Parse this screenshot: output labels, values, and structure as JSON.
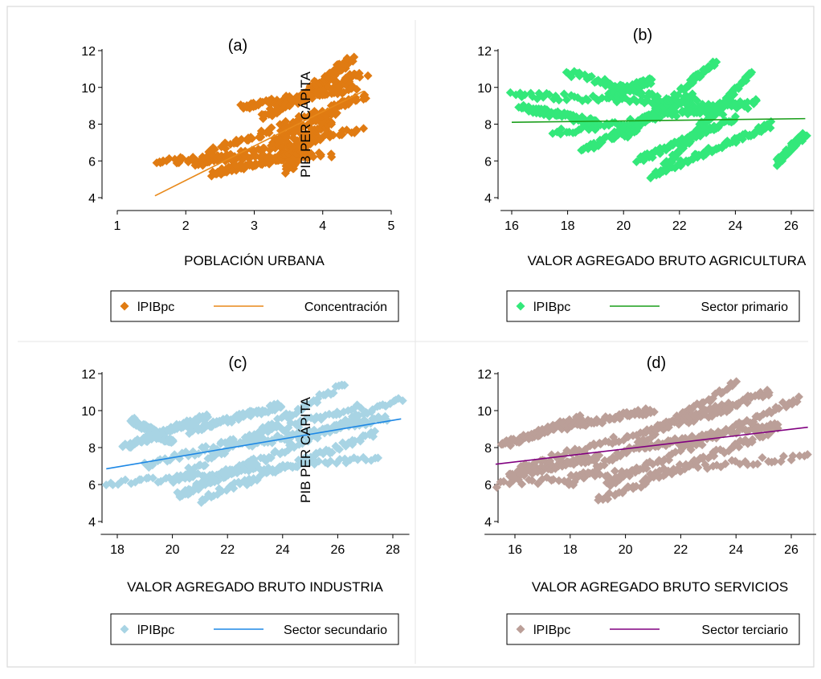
{
  "figure": {
    "frame_color": "#d9d9d9",
    "panel_border_color": "#e6e6e6"
  },
  "chart_data": [
    {
      "id": "a",
      "type": "scatter",
      "title": "(a)",
      "xlabel": "POBLACIÓN URBANA",
      "ylabel": "PIB PER CÁPITA",
      "xlim": [
        1,
        5
      ],
      "ylim": [
        4,
        12
      ],
      "xticks": [
        "1",
        "2",
        "3",
        "4",
        "5"
      ],
      "yticks": [
        "4",
        "6",
        "8",
        "10",
        "12"
      ],
      "grid": false,
      "legend_position": "bottom",
      "series": [
        {
          "name": "lPIBpc",
          "kind": "scatter",
          "marker": "diamond",
          "color": "#e07b12",
          "clusters": [
            {
              "from": [
                1.55,
                6.0
              ],
              "to": [
                4.1,
                6.3
              ]
            },
            {
              "from": [
                2.1,
                5.8
              ],
              "to": [
                4.55,
                7.8
              ]
            },
            {
              "from": [
                2.3,
                6.4
              ],
              "to": [
                4.4,
                9.2
              ]
            },
            {
              "from": [
                2.8,
                8.9
              ],
              "to": [
                4.5,
                10.0
              ]
            },
            {
              "from": [
                3.1,
                8.4
              ],
              "to": [
                4.6,
                10.8
              ]
            },
            {
              "from": [
                3.8,
                9.8
              ],
              "to": [
                4.4,
                11.5
              ]
            },
            {
              "from": [
                2.4,
                5.3
              ],
              "to": [
                3.6,
                6.4
              ]
            },
            {
              "from": [
                3.4,
                6.2
              ],
              "to": [
                4.1,
                8.2
              ]
            },
            {
              "from": [
                3.3,
                7.0
              ],
              "to": [
                4.6,
                9.6
              ]
            },
            {
              "from": [
                3.5,
                5.5
              ],
              "to": [
                3.8,
                7.2
              ]
            }
          ]
        },
        {
          "name": "Concentración",
          "kind": "line",
          "color": "#e8891a",
          "x": [
            1.55,
            4.6
          ],
          "y": [
            4.1,
            9.8
          ]
        }
      ]
    },
    {
      "id": "b",
      "type": "scatter",
      "title": "(b)",
      "xlabel": "VALOR AGREGADO BRUTO AGRICULTURA",
      "ylabel": "",
      "xlim": [
        15.6,
        26.8
      ],
      "ylim": [
        4,
        12
      ],
      "xticks": [
        "16",
        "18",
        "20",
        "22",
        "24",
        "26"
      ],
      "yticks": [
        "4",
        "6",
        "8",
        "10",
        "12"
      ],
      "grid": false,
      "legend_position": "bottom",
      "series": [
        {
          "name": "lPIBpc",
          "kind": "scatter",
          "marker": "diamond",
          "color": "#33e87a",
          "clusters": [
            {
              "from": [
                16.0,
                9.6
              ],
              "to": [
                24.6,
                9.0
              ]
            },
            {
              "from": [
                18.0,
                10.8
              ],
              "to": [
                23.5,
                8.5
              ]
            },
            {
              "from": [
                17.5,
                7.5
              ],
              "to": [
                24.8,
                9.2
              ]
            },
            {
              "from": [
                18.5,
                6.5
              ],
              "to": [
                22.5,
                9.6
              ]
            },
            {
              "from": [
                19.5,
                9.5
              ],
              "to": [
                21.0,
                10.4
              ]
            },
            {
              "from": [
                20.5,
                6.0
              ],
              "to": [
                24.0,
                8.3
              ]
            },
            {
              "from": [
                20.0,
                7.2
              ],
              "to": [
                23.3,
                11.4
              ]
            },
            {
              "from": [
                21.0,
                5.2
              ],
              "to": [
                25.3,
                8.0
              ]
            },
            {
              "from": [
                21.5,
                5.8
              ],
              "to": [
                24.6,
                10.8
              ]
            },
            {
              "from": [
                25.5,
                5.9
              ],
              "to": [
                26.5,
                7.5
              ]
            },
            {
              "from": [
                16.3,
                8.9
              ],
              "to": [
                19.0,
                8.1
              ]
            }
          ]
        },
        {
          "name": "Sector primario",
          "kind": "line",
          "color": "#1a9e1a",
          "x": [
            16.0,
            26.5
          ],
          "y": [
            8.1,
            8.3
          ]
        }
      ]
    },
    {
      "id": "c",
      "type": "scatter",
      "title": "(c)",
      "xlabel": "VALOR AGREGADO BRUTO INDUSTRIA",
      "ylabel": "PIB PER CÁPITA",
      "xlim": [
        17.4,
        28.6
      ],
      "ylim": [
        4,
        12
      ],
      "xticks": [
        "18",
        "20",
        "22",
        "24",
        "26",
        "28"
      ],
      "yticks": [
        "4",
        "6",
        "8",
        "10",
        "12"
      ],
      "grid": false,
      "legend_position": "bottom",
      "series": [
        {
          "name": "lPIBpc",
          "kind": "scatter",
          "marker": "diamond",
          "color": "#a8d4e4",
          "clusters": [
            {
              "from": [
                17.6,
                6.0
              ],
              "to": [
                27.5,
                7.5
              ]
            },
            {
              "from": [
                18.2,
                8.0
              ],
              "to": [
                21.3,
                9.7
              ]
            },
            {
              "from": [
                19.0,
                7.0
              ],
              "to": [
                26.8,
                10.2
              ]
            },
            {
              "from": [
                20.6,
                8.9
              ],
              "to": [
                24.0,
                10.3
              ]
            },
            {
              "from": [
                20.0,
                6.2
              ],
              "to": [
                26.3,
                11.5
              ]
            },
            {
              "from": [
                21.0,
                5.2
              ],
              "to": [
                27.4,
                8.8
              ]
            },
            {
              "from": [
                21.5,
                6.2
              ],
              "to": [
                28.3,
                10.7
              ]
            },
            {
              "from": [
                22.8,
                8.2
              ],
              "to": [
                27.8,
                9.6
              ]
            },
            {
              "from": [
                20.2,
                5.4
              ],
              "to": [
                23.0,
                7.3
              ]
            },
            {
              "from": [
                18.5,
                9.5
              ],
              "to": [
                20.0,
                8.3
              ]
            }
          ]
        },
        {
          "name": "Sector secundario",
          "kind": "line",
          "color": "#1e88e5",
          "x": [
            17.6,
            28.3
          ],
          "y": [
            6.85,
            9.55
          ]
        }
      ]
    },
    {
      "id": "d",
      "type": "scatter",
      "title": "(d)",
      "xlabel": "VALOR AGREGADO BRUTO SERVICIOS",
      "ylabel": "",
      "xlim": [
        14.9,
        26.9
      ],
      "ylim": [
        4,
        12
      ],
      "xticks": [
        "16",
        "18",
        "20",
        "22",
        "24",
        "26"
      ],
      "yticks": [
        "4",
        "6",
        "8",
        "10",
        "12"
      ],
      "grid": false,
      "legend_position": "bottom",
      "series": [
        {
          "name": "lPIBpc",
          "kind": "scatter",
          "marker": "diamond",
          "color": "#bb9f98",
          "clusters": [
            {
              "from": [
                15.3,
                6.0
              ],
              "to": [
                26.6,
                7.5
              ]
            },
            {
              "from": [
                15.5,
                8.1
              ],
              "to": [
                18.4,
                9.6
              ]
            },
            {
              "from": [
                16.2,
                7.0
              ],
              "to": [
                24.0,
                10.2
              ]
            },
            {
              "from": [
                17.3,
                9.0
              ],
              "to": [
                21.0,
                10.0
              ]
            },
            {
              "from": [
                18.0,
                6.0
              ],
              "to": [
                24.0,
                11.5
              ]
            },
            {
              "from": [
                19.0,
                5.1
              ],
              "to": [
                25.5,
                9.0
              ]
            },
            {
              "from": [
                19.3,
                6.0
              ],
              "to": [
                26.3,
                10.7
              ]
            },
            {
              "from": [
                20.5,
                8.0
              ],
              "to": [
                25.5,
                9.3
              ]
            },
            {
              "from": [
                15.8,
                6.5
              ],
              "to": [
                19.0,
                7.5
              ]
            },
            {
              "from": [
                21.0,
                9.0
              ],
              "to": [
                25.2,
                11.0
              ]
            }
          ]
        },
        {
          "name": "Sector terciario",
          "kind": "line",
          "color": "#800080",
          "x": [
            15.3,
            26.6
          ],
          "y": [
            7.1,
            9.1
          ]
        }
      ]
    }
  ]
}
